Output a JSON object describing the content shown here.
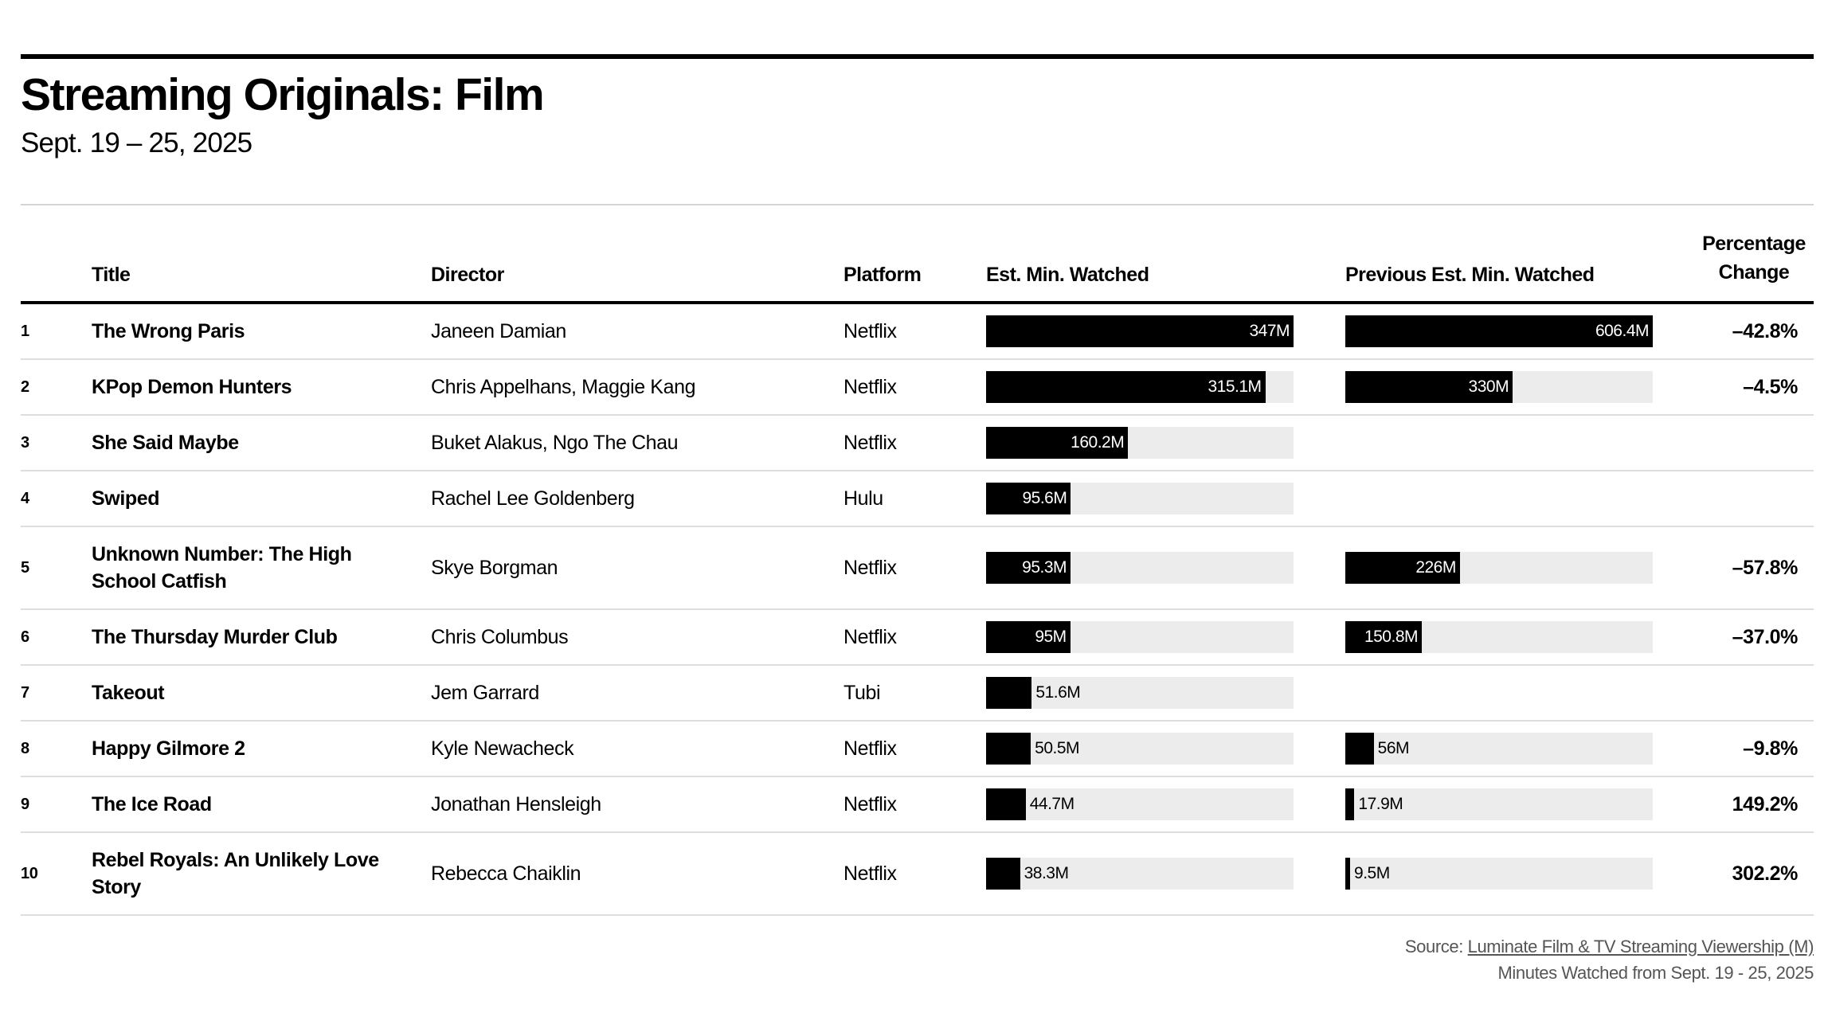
{
  "header": {
    "title": "Streaming Originals: Film",
    "subtitle": "Sept. 19 – 25, 2025"
  },
  "columns": {
    "title": "Title",
    "director": "Director",
    "platform": "Platform",
    "est": "Est. Min. Watched",
    "prev": "Previous Est. Min. Watched",
    "pct": "Percentage Change"
  },
  "colors": {
    "bar": "#000000",
    "track": "#ececec"
  },
  "chart_data": {
    "type": "table",
    "units": "M",
    "rows": [
      {
        "rank": "1",
        "title": "The Wrong Paris",
        "director": "Janeen Damian",
        "platform": "Netflix",
        "est": 347,
        "est_label": "347M",
        "prev": 606.4,
        "prev_label": "606.4M",
        "pct": "–42.8%"
      },
      {
        "rank": "2",
        "title": "KPop Demon Hunters",
        "director": "Chris Appelhans, Maggie Kang",
        "platform": "Netflix",
        "est": 315.1,
        "est_label": "315.1M",
        "prev": 330,
        "prev_label": "330M",
        "pct": "–4.5%"
      },
      {
        "rank": "3",
        "title": "She Said Maybe",
        "director": "Buket Alakus, Ngo The Chau",
        "platform": "Netflix",
        "est": 160.2,
        "est_label": "160.2M",
        "prev": null,
        "prev_label": "",
        "pct": ""
      },
      {
        "rank": "4",
        "title": "Swiped",
        "director": "Rachel Lee Goldenberg",
        "platform": "Hulu",
        "est": 95.6,
        "est_label": "95.6M",
        "prev": null,
        "prev_label": "",
        "pct": ""
      },
      {
        "rank": "5",
        "title": "Unknown Number: The High School Catfish",
        "director": "Skye Borgman",
        "platform": "Netflix",
        "est": 95.3,
        "est_label": "95.3M",
        "prev": 226,
        "prev_label": "226M",
        "pct": "–57.8%"
      },
      {
        "rank": "6",
        "title": "The Thursday Murder Club",
        "director": "Chris Columbus",
        "platform": "Netflix",
        "est": 95,
        "est_label": "95M",
        "prev": 150.8,
        "prev_label": "150.8M",
        "pct": "–37.0%"
      },
      {
        "rank": "7",
        "title": "Takeout",
        "director": "Jem Garrard",
        "platform": "Tubi",
        "est": 51.6,
        "est_label": "51.6M",
        "prev": null,
        "prev_label": "",
        "pct": ""
      },
      {
        "rank": "8",
        "title": "Happy Gilmore 2",
        "director": "Kyle Newacheck",
        "platform": "Netflix",
        "est": 50.5,
        "est_label": "50.5M",
        "prev": 56,
        "prev_label": "56M",
        "pct": "–9.8%"
      },
      {
        "rank": "9",
        "title": "The Ice Road",
        "director": "Jonathan Hensleigh",
        "platform": "Netflix",
        "est": 44.7,
        "est_label": "44.7M",
        "prev": 17.9,
        "prev_label": "17.9M",
        "pct": "149.2%"
      },
      {
        "rank": "10",
        "title": "Rebel Royals: An Unlikely Love Story",
        "director": "Rebecca Chaiklin",
        "platform": "Netflix",
        "est": 38.3,
        "est_label": "38.3M",
        "prev": 9.5,
        "prev_label": "9.5M",
        "pct": "302.2%"
      }
    ]
  },
  "footer": {
    "source_prefix": "Source: ",
    "source_link": "Luminate Film & TV Streaming Viewership (M)",
    "note": "Minutes Watched from Sept. 19 - 25, 2025"
  }
}
